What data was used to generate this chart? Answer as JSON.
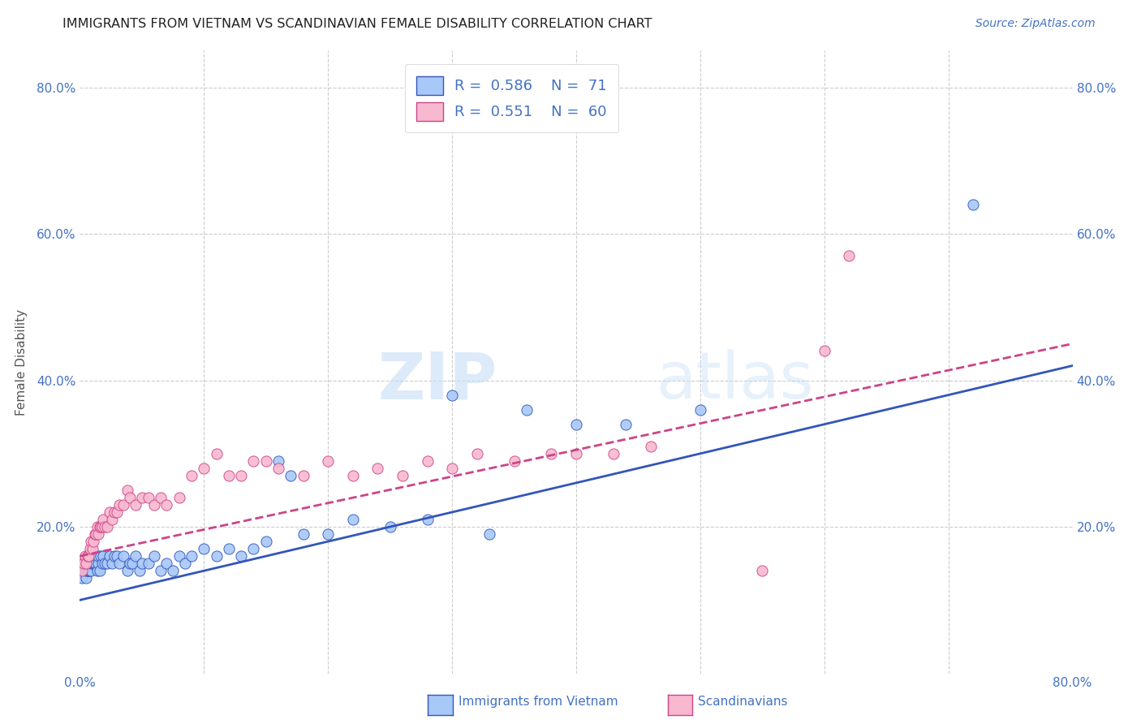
{
  "title": "IMMIGRANTS FROM VIETNAM VS SCANDINAVIAN FEMALE DISABILITY CORRELATION CHART",
  "source": "Source: ZipAtlas.com",
  "ylabel": "Female Disability",
  "xlim": [
    0.0,
    0.8
  ],
  "ylim": [
    0.0,
    0.85
  ],
  "x_ticks": [
    0.0,
    0.1,
    0.2,
    0.3,
    0.4,
    0.5,
    0.6,
    0.7,
    0.8
  ],
  "y_ticks": [
    0.0,
    0.2,
    0.4,
    0.6,
    0.8
  ],
  "watermark_zip": "ZIP",
  "watermark_atlas": "atlas",
  "legend_R1": "R = 0.586",
  "legend_N1": "N = 71",
  "legend_R2": "R = 0.551",
  "legend_N2": "N = 60",
  "color_vietnam": "#a8c8f8",
  "color_scandinavian": "#f8b8d0",
  "color_vietnam_line": "#3355bb",
  "color_scandinavian_line": "#cc4488",
  "color_text_blue": "#4472c4",
  "vietnam_x": [
    0.001,
    0.002,
    0.003,
    0.004,
    0.005,
    0.005,
    0.006,
    0.006,
    0.007,
    0.007,
    0.008,
    0.008,
    0.009,
    0.009,
    0.01,
    0.01,
    0.011,
    0.011,
    0.012,
    0.012,
    0.013,
    0.013,
    0.014,
    0.015,
    0.015,
    0.016,
    0.017,
    0.018,
    0.019,
    0.02,
    0.022,
    0.024,
    0.026,
    0.028,
    0.03,
    0.032,
    0.035,
    0.038,
    0.04,
    0.042,
    0.045,
    0.048,
    0.05,
    0.055,
    0.06,
    0.065,
    0.07,
    0.075,
    0.08,
    0.085,
    0.09,
    0.1,
    0.11,
    0.12,
    0.13,
    0.14,
    0.15,
    0.16,
    0.17,
    0.18,
    0.2,
    0.22,
    0.25,
    0.28,
    0.3,
    0.33,
    0.36,
    0.4,
    0.44,
    0.5,
    0.72
  ],
  "vietnam_y": [
    0.14,
    0.13,
    0.14,
    0.14,
    0.13,
    0.14,
    0.15,
    0.14,
    0.15,
    0.14,
    0.14,
    0.15,
    0.14,
    0.15,
    0.15,
    0.16,
    0.15,
    0.16,
    0.15,
    0.16,
    0.15,
    0.16,
    0.14,
    0.15,
    0.16,
    0.14,
    0.16,
    0.15,
    0.16,
    0.15,
    0.15,
    0.16,
    0.15,
    0.16,
    0.16,
    0.15,
    0.16,
    0.14,
    0.15,
    0.15,
    0.16,
    0.14,
    0.15,
    0.15,
    0.16,
    0.14,
    0.15,
    0.14,
    0.16,
    0.15,
    0.16,
    0.17,
    0.16,
    0.17,
    0.16,
    0.17,
    0.18,
    0.29,
    0.27,
    0.19,
    0.19,
    0.21,
    0.2,
    0.21,
    0.38,
    0.19,
    0.36,
    0.34,
    0.34,
    0.36,
    0.64
  ],
  "scandinavian_x": [
    0.001,
    0.002,
    0.003,
    0.004,
    0.005,
    0.006,
    0.007,
    0.008,
    0.009,
    0.01,
    0.011,
    0.012,
    0.013,
    0.014,
    0.015,
    0.016,
    0.017,
    0.018,
    0.019,
    0.02,
    0.022,
    0.024,
    0.026,
    0.028,
    0.03,
    0.032,
    0.035,
    0.038,
    0.04,
    0.045,
    0.05,
    0.055,
    0.06,
    0.065,
    0.07,
    0.08,
    0.09,
    0.1,
    0.11,
    0.12,
    0.13,
    0.14,
    0.15,
    0.16,
    0.18,
    0.2,
    0.22,
    0.24,
    0.26,
    0.28,
    0.3,
    0.32,
    0.35,
    0.38,
    0.4,
    0.43,
    0.46,
    0.55,
    0.6,
    0.62
  ],
  "scandinavian_y": [
    0.15,
    0.14,
    0.15,
    0.16,
    0.15,
    0.16,
    0.16,
    0.17,
    0.18,
    0.17,
    0.18,
    0.19,
    0.19,
    0.2,
    0.19,
    0.2,
    0.2,
    0.2,
    0.21,
    0.2,
    0.2,
    0.22,
    0.21,
    0.22,
    0.22,
    0.23,
    0.23,
    0.25,
    0.24,
    0.23,
    0.24,
    0.24,
    0.23,
    0.24,
    0.23,
    0.24,
    0.27,
    0.28,
    0.3,
    0.27,
    0.27,
    0.29,
    0.29,
    0.28,
    0.27,
    0.29,
    0.27,
    0.28,
    0.27,
    0.29,
    0.28,
    0.3,
    0.29,
    0.3,
    0.3,
    0.3,
    0.31,
    0.14,
    0.44,
    0.57
  ],
  "vietnam_line_x0": 0.0,
  "vietnam_line_y0": 0.1,
  "vietnam_line_x1": 0.8,
  "vietnam_line_y1": 0.42,
  "scand_line_x0": 0.0,
  "scand_line_y0": 0.16,
  "scand_line_x1": 0.8,
  "scand_line_y1": 0.45
}
